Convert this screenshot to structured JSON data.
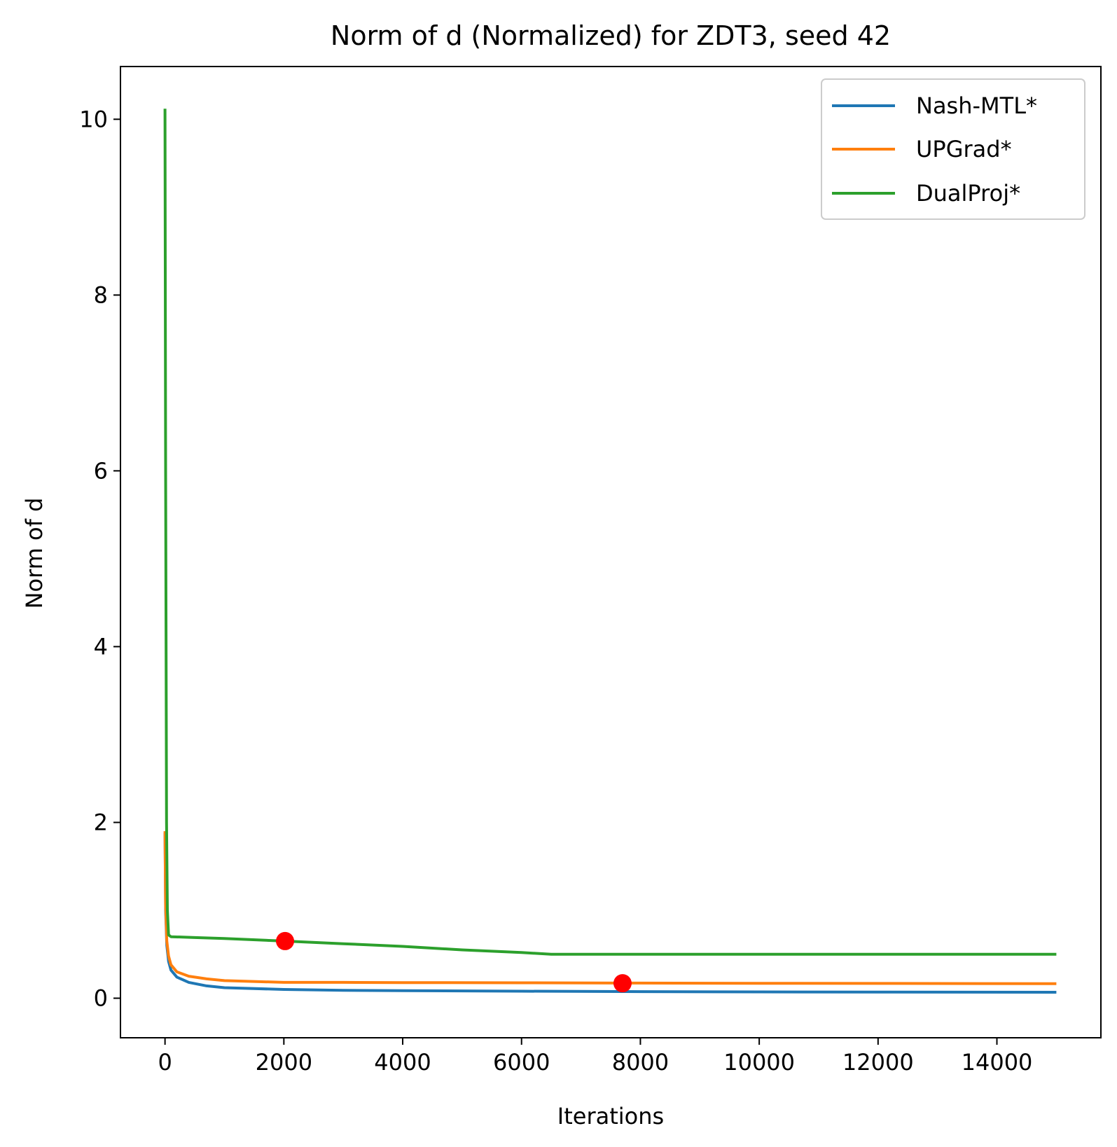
{
  "chart_data": {
    "type": "line",
    "title": "Norm of d (Normalized) for ZDT3, seed 42",
    "xlabel": "Iterations",
    "ylabel": "Norm of d",
    "xlim": [
      -750,
      15750
    ],
    "ylim": [
      -0.45,
      10.6
    ],
    "xticks": [
      0,
      2000,
      4000,
      6000,
      8000,
      10000,
      12000,
      14000
    ],
    "xtick_labels": [
      "0",
      "2000",
      "4000",
      "6000",
      "8000",
      "10000",
      "12000",
      "14000"
    ],
    "yticks": [
      0,
      2,
      4,
      6,
      8,
      10
    ],
    "ytick_labels": [
      "0",
      "2",
      "4",
      "6",
      "8",
      "10"
    ],
    "grid": false,
    "legend_position": "top-right",
    "series": [
      {
        "name": "Nash-MTL*",
        "color": "#1f77b4",
        "x": [
          0,
          10,
          30,
          60,
          100,
          200,
          400,
          700,
          1000,
          2000,
          3000,
          4000,
          6000,
          8000,
          10000,
          12000,
          15000
        ],
        "y": [
          1.88,
          1.0,
          0.6,
          0.42,
          0.32,
          0.24,
          0.18,
          0.14,
          0.12,
          0.1,
          0.09,
          0.085,
          0.08,
          0.075,
          0.072,
          0.07,
          0.068
        ]
      },
      {
        "name": "UPGrad*",
        "color": "#ff7f0e",
        "x": [
          0,
          10,
          30,
          60,
          100,
          200,
          400,
          700,
          1000,
          2000,
          3000,
          4000,
          6000,
          8000,
          10000,
          12000,
          15000
        ],
        "y": [
          1.9,
          1.05,
          0.65,
          0.48,
          0.38,
          0.3,
          0.25,
          0.22,
          0.2,
          0.18,
          0.18,
          0.178,
          0.175,
          0.172,
          0.17,
          0.168,
          0.165
        ]
      },
      {
        "name": "DualProj*",
        "color": "#2ca02c",
        "x": [
          0,
          10,
          25,
          40,
          60,
          100,
          500,
          1000,
          2000,
          3000,
          4000,
          5000,
          6000,
          6500,
          8000,
          10000,
          12000,
          15000
        ],
        "y": [
          10.12,
          6.0,
          2.0,
          1.0,
          0.72,
          0.7,
          0.69,
          0.68,
          0.65,
          0.62,
          0.59,
          0.55,
          0.52,
          0.5,
          0.5,
          0.5,
          0.5,
          0.5
        ]
      }
    ],
    "markers": [
      {
        "x": 2020,
        "y": 0.65,
        "color": "#ff0000"
      },
      {
        "x": 7700,
        "y": 0.17,
        "color": "#ff0000"
      }
    ]
  }
}
